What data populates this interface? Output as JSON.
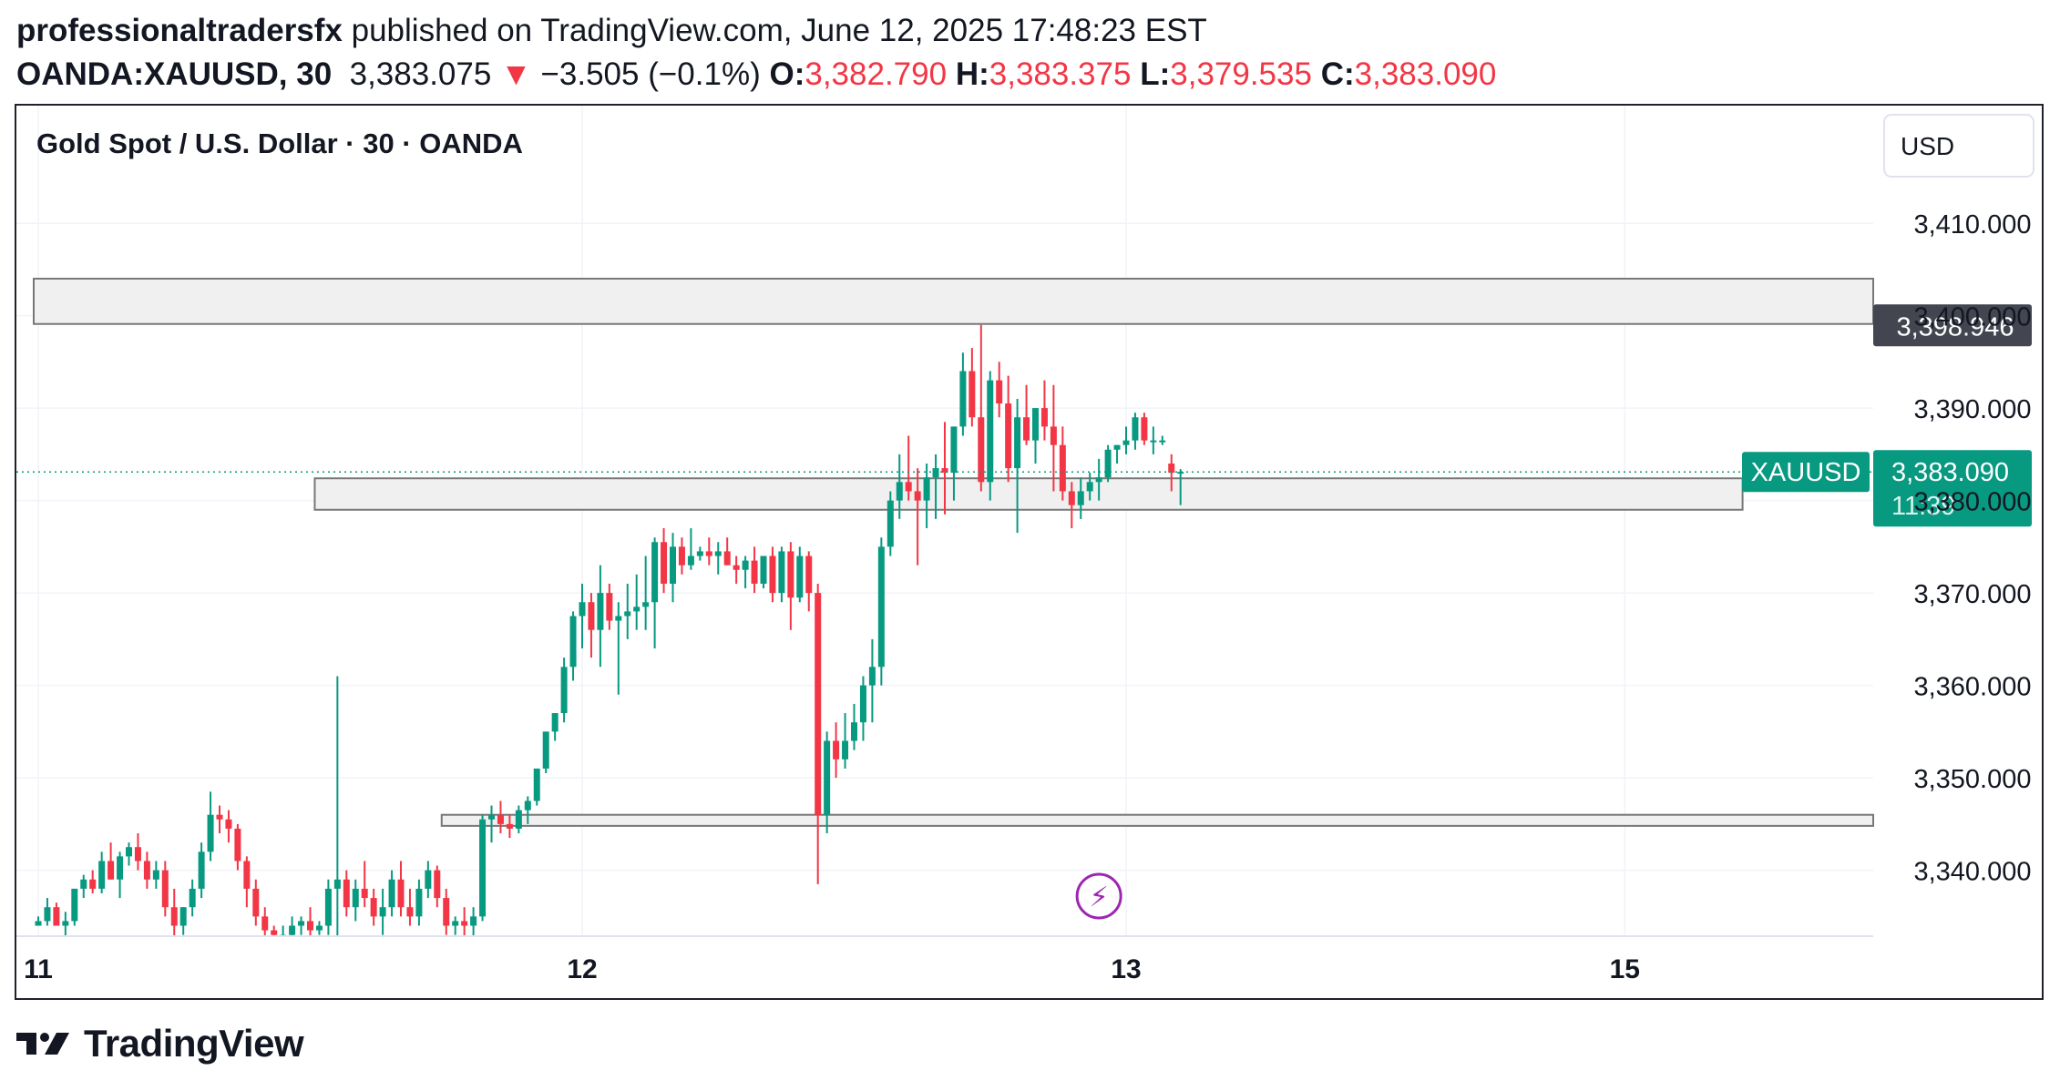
{
  "header": {
    "author": "professionaltradersfx",
    "published": " published on TradingView.com, June 12, 2025 17:48:23 EST",
    "symbol": "OANDA:XAUUSD, 30",
    "last": "3,383.075",
    "change_arrow": "▼",
    "change": "−3.505 (−0.1%)",
    "o_label": "O:",
    "o_value": "3,382.790",
    "h_label": "H:",
    "h_value": "3,383.375",
    "l_label": "L:",
    "l_value": "3,379.535",
    "c_label": "C:",
    "c_value": "3,383.090"
  },
  "footer": {
    "brand": "TradingView"
  },
  "chart_data": {
    "type": "candlestick",
    "title": "Gold Spot / U.S. Dollar · 30 · OANDA",
    "currency": "USD",
    "y_axis": {
      "ticks": [
        3340,
        3350,
        3360,
        3370,
        3380,
        3390,
        3400,
        3410
      ],
      "tick_labels": [
        "3,340.000",
        "3,350.000",
        "3,360.000",
        "3,370.000",
        "3,380.000",
        "3,390.000",
        "3,400.000",
        "3,410.000"
      ],
      "visible_range": [
        3334,
        3420
      ]
    },
    "x_axis": {
      "tick_labels": [
        "11",
        "12",
        "13",
        "15"
      ],
      "tick_bar_index": [
        0,
        60,
        120,
        175
      ]
    },
    "colors": {
      "up": "#089981",
      "down": "#f23645",
      "grid": "#f0f3fa",
      "zone_fill": "#f0f0f0",
      "zone_border": "#777777",
      "last_price": "#089981",
      "marker": "#9c27b0"
    },
    "last_price": {
      "symbol": "XAUUSD",
      "value": "3,383.090",
      "countdown": "11:39",
      "price": 3383.09
    },
    "level_label": {
      "value": "3,398.946",
      "price": 3398.946
    },
    "zones": [
      {
        "from_bar": 0,
        "to_bar": 204,
        "low": 3399.1,
        "high": 3404.0
      },
      {
        "from_bar": 31,
        "to_bar": 188,
        "low": 3379.0,
        "high": 3382.4
      },
      {
        "from_bar": 45,
        "to_bar": 204,
        "low": 3344.8,
        "high": 3346.0
      }
    ],
    "event_marker": {
      "bar": 117,
      "price": 3337.2,
      "symbol": "⚡"
    },
    "candles": [
      [
        3334.0,
        3335.0,
        3334.5,
        3334.5
      ],
      [
        3334.5,
        3337.0,
        3334.0,
        3336.0
      ],
      [
        3336.0,
        3336.5,
        3334.0,
        3334.0
      ],
      [
        3334.0,
        3335.5,
        3332.0,
        3334.5
      ],
      [
        3334.5,
        3338.0,
        3334.0,
        3338.0
      ],
      [
        3338.0,
        3339.5,
        3337.0,
        3339.0
      ],
      [
        3339.0,
        3340.0,
        3337.5,
        3338.0
      ],
      [
        3338.0,
        3342.0,
        3337.5,
        3341.0
      ],
      [
        3341.0,
        3343.0,
        3339.0,
        3339.0
      ],
      [
        3339.0,
        3342.0,
        3337.0,
        3341.5
      ],
      [
        3341.5,
        3343.0,
        3340.5,
        3342.5
      ],
      [
        3342.5,
        3344.0,
        3340.0,
        3341.0
      ],
      [
        3341.0,
        3342.0,
        3338.0,
        3339.0
      ],
      [
        3339.0,
        3341.0,
        3338.0,
        3340.0
      ],
      [
        3340.0,
        3341.0,
        3335.0,
        3336.0
      ],
      [
        3336.0,
        3338.0,
        3332.0,
        3334.0
      ],
      [
        3334.0,
        3336.0,
        3333.0,
        3336.0
      ],
      [
        3336.0,
        3339.0,
        3335.0,
        3338.0
      ],
      [
        3338.0,
        3343.0,
        3337.0,
        3342.0
      ],
      [
        3342.0,
        3348.5,
        3341.0,
        3346.0
      ],
      [
        3346.0,
        3347.0,
        3344.0,
        3345.5
      ],
      [
        3345.5,
        3346.5,
        3343.0,
        3344.5
      ],
      [
        3344.5,
        3345.0,
        3340.0,
        3341.0
      ],
      [
        3341.0,
        3341.5,
        3336.0,
        3338.0
      ],
      [
        3338.0,
        3339.0,
        3334.0,
        3335.0
      ],
      [
        3335.0,
        3336.0,
        3332.0,
        3333.5
      ],
      [
        3333.5,
        3334.0,
        3332.0,
        3333.0
      ],
      [
        3333.0,
        3334.0,
        3331.0,
        3333.0
      ],
      [
        3333.0,
        3335.0,
        3331.0,
        3334.0
      ],
      [
        3334.0,
        3335.0,
        3333.0,
        3334.5
      ],
      [
        3334.5,
        3336.0,
        3332.5,
        3333.5
      ],
      [
        3333.5,
        3334.5,
        3333.0,
        3334.0
      ],
      [
        3334.0,
        3339.0,
        3333.0,
        3338.0
      ],
      [
        3338.0,
        3361.0,
        3332.0,
        3339.0
      ],
      [
        3339.0,
        3340.0,
        3335.0,
        3336.0
      ],
      [
        3336.0,
        3339.0,
        3334.5,
        3338.0
      ],
      [
        3338.0,
        3341.0,
        3336.0,
        3337.0
      ],
      [
        3337.0,
        3338.0,
        3334.0,
        3335.0
      ],
      [
        3335.0,
        3338.0,
        3333.0,
        3336.0
      ],
      [
        3336.0,
        3340.0,
        3335.0,
        3339.0
      ],
      [
        3339.0,
        3341.0,
        3335.0,
        3336.0
      ],
      [
        3336.0,
        3338.0,
        3334.0,
        3335.0
      ],
      [
        3335.0,
        3339.0,
        3334.0,
        3338.0
      ],
      [
        3338.0,
        3341.0,
        3337.0,
        3340.0
      ],
      [
        3340.0,
        3340.5,
        3336.0,
        3337.0
      ],
      [
        3337.0,
        3338.0,
        3333.0,
        3334.0
      ],
      [
        3334.0,
        3335.0,
        3333.0,
        3334.5
      ],
      [
        3334.5,
        3336.0,
        3332.5,
        3334.0
      ],
      [
        3334.0,
        3336.0,
        3332.5,
        3335.0
      ],
      [
        3335.0,
        3346.0,
        3334.5,
        3345.5
      ],
      [
        3345.5,
        3347.0,
        3343.0,
        3346.0
      ],
      [
        3346.0,
        3347.5,
        3344.0,
        3345.0
      ],
      [
        3345.0,
        3346.0,
        3343.5,
        3344.5
      ],
      [
        3344.5,
        3347.0,
        3344.0,
        3346.5
      ],
      [
        3346.5,
        3348.0,
        3345.0,
        3347.5
      ],
      [
        3347.5,
        3351.0,
        3347.0,
        3351.0
      ],
      [
        3351.0,
        3355.0,
        3350.5,
        3355.0
      ],
      [
        3355.0,
        3357.0,
        3354.0,
        3357.0
      ],
      [
        3357.0,
        3363.0,
        3356.0,
        3362.0
      ],
      [
        3362.0,
        3368.0,
        3360.5,
        3367.5
      ],
      [
        3367.5,
        3371.0,
        3364.0,
        3369.0
      ],
      [
        3369.0,
        3370.0,
        3363.0,
        3366.0
      ],
      [
        3366.0,
        3373.0,
        3362.0,
        3370.0
      ],
      [
        3370.0,
        3371.0,
        3366.0,
        3367.0
      ],
      [
        3367.0,
        3369.0,
        3359.0,
        3367.5
      ],
      [
        3367.5,
        3371.0,
        3365.0,
        3368.0
      ],
      [
        3368.0,
        3372.0,
        3366.0,
        3368.5
      ],
      [
        3368.5,
        3374.0,
        3366.0,
        3369.0
      ],
      [
        3369.0,
        3376.0,
        3364.0,
        3375.5
      ],
      [
        3375.5,
        3377.0,
        3370.0,
        3371.0
      ],
      [
        3371.0,
        3376.5,
        3369.0,
        3375.0
      ],
      [
        3375.0,
        3376.0,
        3372.0,
        3373.0
      ],
      [
        3373.0,
        3377.0,
        3372.5,
        3374.0
      ],
      [
        3374.0,
        3375.0,
        3373.5,
        3374.5
      ],
      [
        3374.5,
        3376.0,
        3373.0,
        3374.0
      ],
      [
        3374.0,
        3375.5,
        3372.0,
        3374.5
      ],
      [
        3374.5,
        3376.0,
        3373.0,
        3373.0
      ],
      [
        3373.0,
        3374.0,
        3371.0,
        3372.5
      ],
      [
        3372.5,
        3374.0,
        3370.5,
        3373.5
      ],
      [
        3373.5,
        3375.0,
        3370.0,
        3371.0
      ],
      [
        3371.0,
        3374.0,
        3370.5,
        3374.0
      ],
      [
        3374.0,
        3375.0,
        3369.0,
        3370.0
      ],
      [
        3370.0,
        3375.0,
        3369.0,
        3374.5
      ],
      [
        3374.5,
        3375.5,
        3366.0,
        3369.5
      ],
      [
        3369.5,
        3375.0,
        3369.0,
        3374.0
      ],
      [
        3374.0,
        3374.5,
        3368.0,
        3370.0
      ],
      [
        3370.0,
        3371.0,
        3338.5,
        3346.0
      ],
      [
        3346.0,
        3355.0,
        3344.0,
        3354.0
      ],
      [
        3354.0,
        3356.0,
        3350.0,
        3352.0
      ],
      [
        3352.0,
        3357.0,
        3351.0,
        3354.0
      ],
      [
        3354.0,
        3358.0,
        3353.0,
        3356.0
      ],
      [
        3356.0,
        3361.0,
        3354.0,
        3360.0
      ],
      [
        3360.0,
        3365.0,
        3356.0,
        3362.0
      ],
      [
        3362.0,
        3376.0,
        3360.0,
        3375.0
      ],
      [
        3375.0,
        3381.0,
        3374.0,
        3380.0
      ],
      [
        3380.0,
        3385.0,
        3378.0,
        3382.0
      ],
      [
        3382.0,
        3387.0,
        3380.0,
        3381.0
      ],
      [
        3381.0,
        3383.5,
        3373.0,
        3380.0
      ],
      [
        3380.0,
        3384.0,
        3377.0,
        3382.5
      ],
      [
        3382.5,
        3385.0,
        3378.0,
        3383.5
      ],
      [
        3383.5,
        3388.5,
        3378.5,
        3383.0
      ],
      [
        3383.0,
        3388.0,
        3380.0,
        3388.0
      ],
      [
        3388.0,
        3396.0,
        3387.0,
        3394.0
      ],
      [
        3394.0,
        3396.5,
        3388.0,
        3389.0
      ],
      [
        3389.0,
        3399.0,
        3381.0,
        3382.0
      ],
      [
        3382.0,
        3394.0,
        3380.0,
        3393.0
      ],
      [
        3393.0,
        3395.0,
        3389.0,
        3390.5
      ],
      [
        3390.5,
        3393.5,
        3382.0,
        3383.5
      ],
      [
        3383.5,
        3391.0,
        3376.5,
        3389.0
      ],
      [
        3389.0,
        3392.5,
        3386.0,
        3386.5
      ],
      [
        3386.5,
        3390.0,
        3384.0,
        3390.0
      ],
      [
        3390.0,
        3393.0,
        3386.5,
        3388.0
      ],
      [
        3388.0,
        3392.5,
        3381.0,
        3386.0
      ],
      [
        3386.0,
        3388.0,
        3380.0,
        3381.0
      ],
      [
        3381.0,
        3382.0,
        3377.0,
        3379.5
      ],
      [
        3379.5,
        3382.5,
        3378.0,
        3381.0
      ],
      [
        3381.0,
        3383.0,
        3380.0,
        3382.0
      ],
      [
        3382.0,
        3384.5,
        3380.0,
        3382.5
      ],
      [
        3382.5,
        3386.0,
        3382.0,
        3385.5
      ],
      [
        3385.5,
        3386.0,
        3384.0,
        3386.0
      ],
      [
        3386.0,
        3388.0,
        3385.0,
        3386.5
      ],
      [
        3386.5,
        3389.5,
        3385.5,
        3389.0
      ],
      [
        3389.0,
        3389.5,
        3386.0,
        3386.5
      ],
      [
        3386.5,
        3388.0,
        3385.0,
        3386.5
      ],
      [
        3386.5,
        3387.0,
        3386.0,
        3386.5
      ],
      [
        3384.0,
        3385.0,
        3381.0,
        3383.0
      ],
      [
        3383.0,
        3383.4,
        3379.5,
        3383.1
      ]
    ]
  }
}
